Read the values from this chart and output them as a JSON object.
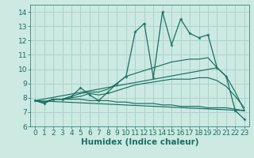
{
  "xlabel": "Humidex (Indice chaleur)",
  "xlim": [
    -0.5,
    23.5
  ],
  "ylim": [
    6,
    14.5
  ],
  "yticks": [
    6,
    7,
    8,
    9,
    10,
    11,
    12,
    13,
    14
  ],
  "xticks": [
    0,
    1,
    2,
    3,
    4,
    5,
    6,
    7,
    8,
    9,
    10,
    11,
    12,
    13,
    14,
    15,
    16,
    17,
    18,
    19,
    20,
    21,
    22,
    23
  ],
  "bg_color": "#cce9e2",
  "grid_color": "#aad4cc",
  "line_color": "#1a7060",
  "main_line": [
    7.8,
    7.6,
    7.9,
    7.9,
    8.1,
    8.7,
    8.2,
    7.8,
    8.4,
    9.0,
    9.5,
    12.6,
    13.2,
    9.4,
    14.0,
    11.7,
    13.5,
    12.5,
    12.2,
    12.4,
    10.1,
    9.5,
    7.1,
    6.5
  ],
  "max_line": [
    7.8,
    7.7,
    7.9,
    7.9,
    8.1,
    8.3,
    8.4,
    8.4,
    8.6,
    9.0,
    9.5,
    9.7,
    9.9,
    10.1,
    10.3,
    10.5,
    10.6,
    10.7,
    10.7,
    10.8,
    10.1,
    9.5,
    8.4,
    7.1
  ],
  "mean_line": [
    7.8,
    7.7,
    7.9,
    7.9,
    8.0,
    8.1,
    8.3,
    8.2,
    8.3,
    8.5,
    8.7,
    8.9,
    9.0,
    9.1,
    9.2,
    9.3,
    9.3,
    9.3,
    9.4,
    9.4,
    9.2,
    8.8,
    8.1,
    7.3
  ],
  "min_line": [
    7.8,
    7.7,
    7.9,
    7.9,
    7.9,
    7.9,
    7.8,
    7.8,
    7.8,
    7.7,
    7.7,
    7.6,
    7.6,
    7.6,
    7.5,
    7.5,
    7.4,
    7.4,
    7.4,
    7.3,
    7.3,
    7.3,
    7.2,
    7.1
  ],
  "tick_fontsize": 6.5,
  "xlabel_fontsize": 7.5
}
